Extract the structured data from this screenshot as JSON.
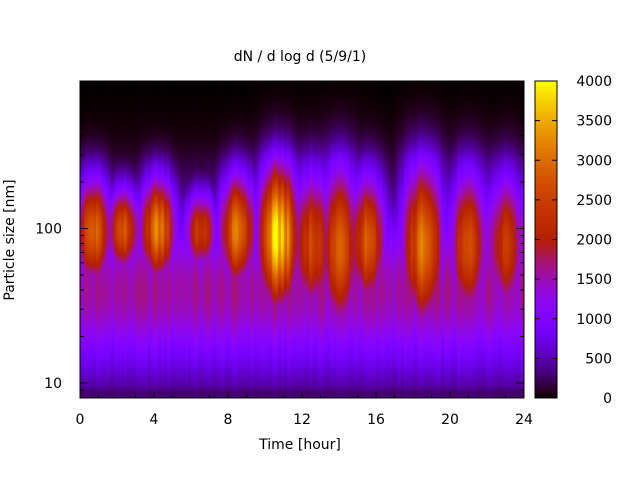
{
  "chart_data": {
    "type": "heatmap",
    "title": "dN / d log d (5/9/1)",
    "xlabel": "Time [hour]",
    "ylabel": "Particle size [nm]",
    "x_range": [
      0,
      24
    ],
    "x_ticks": [
      0,
      4,
      8,
      12,
      16,
      20,
      24
    ],
    "y_scale": "log",
    "y_range_nm": [
      8,
      900
    ],
    "y_ticks": [
      10,
      100
    ],
    "colorbar": {
      "range": [
        0,
        4000
      ],
      "ticks": [
        0,
        500,
        1000,
        1500,
        2000,
        2500,
        3000,
        3500,
        4000
      ],
      "colormap": "gnuplot-pm3d",
      "colors": [
        "#000000",
        "#7f00ff",
        "#ff0000",
        "#ffff00"
      ]
    },
    "peak_diameter_nm": 100,
    "events": [
      {
        "time_h": 0.7,
        "intensity": 2900,
        "lower_nm": 35,
        "upper_nm": 230
      },
      {
        "time_h": 2.3,
        "intensity": 2700,
        "lower_nm": 45,
        "upper_nm": 200
      },
      {
        "time_h": 4.2,
        "intensity": 3100,
        "lower_nm": 40,
        "upper_nm": 240
      },
      {
        "time_h": 6.5,
        "intensity": 2400,
        "lower_nm": 45,
        "upper_nm": 180
      },
      {
        "time_h": 8.5,
        "intensity": 3000,
        "lower_nm": 35,
        "upper_nm": 250
      },
      {
        "time_h": 10.7,
        "intensity": 3800,
        "lower_nm": 22,
        "upper_nm": 270
      },
      {
        "time_h": 12.5,
        "intensity": 2600,
        "lower_nm": 16,
        "upper_nm": 200
      },
      {
        "time_h": 14.0,
        "intensity": 2800,
        "lower_nm": 12,
        "upper_nm": 210
      },
      {
        "time_h": 15.5,
        "intensity": 2700,
        "lower_nm": 20,
        "upper_nm": 200
      },
      {
        "time_h": 18.5,
        "intensity": 3000,
        "lower_nm": 13,
        "upper_nm": 230
      },
      {
        "time_h": 21.0,
        "intensity": 2600,
        "lower_nm": 15,
        "upper_nm": 200
      },
      {
        "time_h": 23.0,
        "intensity": 2500,
        "lower_nm": 16,
        "upper_nm": 190
      }
    ]
  }
}
